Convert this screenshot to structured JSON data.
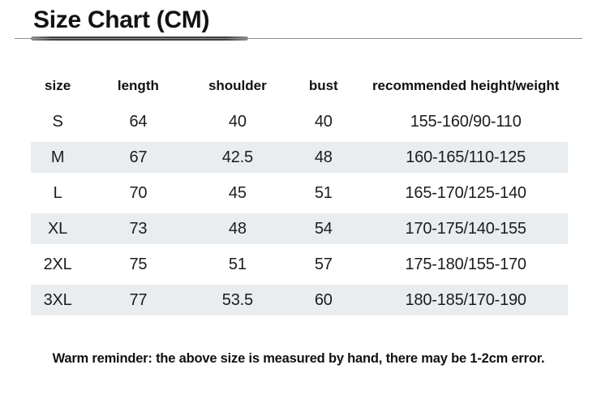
{
  "page": {
    "title": "Size Chart (CM)",
    "footer": "Warm reminder: the above size is measured by hand, there may be 1-2cm error."
  },
  "chart_data": {
    "type": "table",
    "title": "Size Chart (CM)",
    "unit": "CM",
    "columns": [
      "size",
      "length",
      "shoulder",
      "bust",
      "recommended height/weight"
    ],
    "rows": [
      [
        "S",
        "64",
        "40",
        "40",
        "155-160/90-110"
      ],
      [
        "M",
        "67",
        "42.5",
        "48",
        "160-165/110-125"
      ],
      [
        "L",
        "70",
        "45",
        "51",
        "165-170/125-140"
      ],
      [
        "XL",
        "73",
        "48",
        "54",
        "170-175/140-155"
      ],
      [
        "2XL",
        "75",
        "51",
        "57",
        "175-180/155-170"
      ],
      [
        "3XL",
        "77",
        "53.5",
        "60",
        "180-185/170-190"
      ]
    ],
    "shaded_row_indices": [
      1,
      3,
      5
    ],
    "zebra_color": "#e9edf0",
    "layout": {
      "legend_position": "none",
      "grid": "off",
      "stripe": "alternate-rows"
    }
  }
}
